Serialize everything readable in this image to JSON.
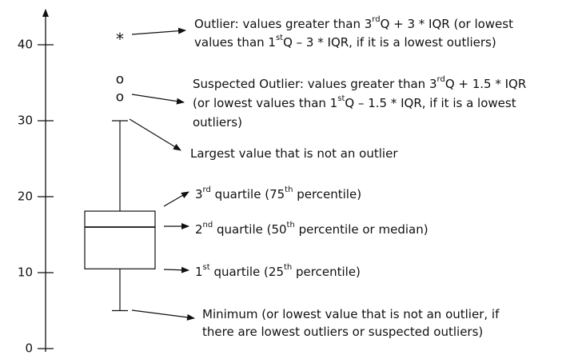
{
  "chart_data": {
    "type": "box",
    "ylim": [
      0,
      44
    ],
    "yticks": [
      0,
      10,
      20,
      30,
      40
    ],
    "box": {
      "min": 5,
      "q1": 10.5,
      "median": 16,
      "q3": 18.1,
      "max": 30
    },
    "outlier_symbol": "*",
    "outliers": [
      41
    ],
    "suspected_symbol": "o",
    "suspected_outliers": [
      35.2,
      32.9
    ],
    "annotations": [
      {
        "lines": [
          [
            "Outlier: values greater than 3",
            "rd",
            "Q + 3 * IQR (or lowest"
          ],
          [
            "values than 1",
            "st",
            "Q – 3 * IQR, if it is a lowest outliers)"
          ]
        ]
      },
      {
        "lines": [
          [
            "Suspected Outlier: values greater than 3",
            "rd",
            "Q + 1.5 * IQR"
          ],
          [
            "(or lowest values than 1",
            "st",
            "Q – 1.5 * IQR, if it is a lowest"
          ],
          [
            "outliers)"
          ]
        ]
      },
      {
        "lines": [
          [
            "Largest value that is not an outlier"
          ]
        ]
      },
      {
        "lines": [
          [
            "3",
            "rd",
            " quartile (75",
            "th",
            " percentile)"
          ]
        ]
      },
      {
        "lines": [
          [
            "2",
            "nd",
            " quartile (50",
            "th",
            " percentile or median)"
          ]
        ]
      },
      {
        "lines": [
          [
            "1",
            "st",
            " quartile (25",
            "th",
            " percentile)"
          ]
        ]
      },
      {
        "lines": [
          [
            "Minimum (or lowest value that is not an outlier, if"
          ],
          [
            "there are lowest outliers or suspected outliers)"
          ]
        ]
      }
    ]
  }
}
